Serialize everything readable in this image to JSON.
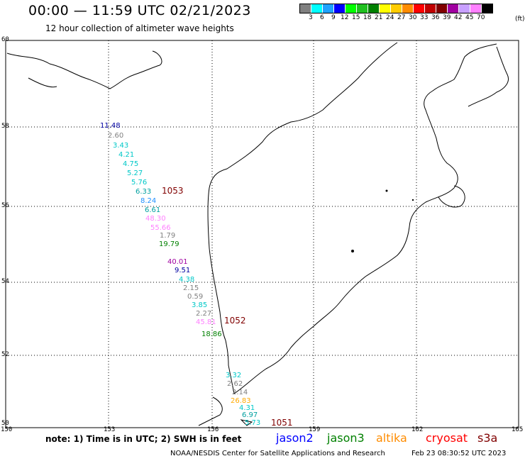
{
  "header": {
    "title": "00:00 — 11:59 UTC 02/21/2023",
    "subtitle": "12 hour collection of altimeter wave heights"
  },
  "legend": {
    "colors": [
      "#808080",
      "#00ffff",
      "#1fa2ff",
      "#0000ff",
      "#00ff00",
      "#20c020",
      "#008000",
      "#ffff00",
      "#ffcc00",
      "#ff8c00",
      "#ff0000",
      "#c00000",
      "#800000",
      "#a000a0",
      "#c8a0ff",
      "#ff80ff",
      "#000000"
    ],
    "ticks": [
      "3",
      "6",
      "9",
      "12",
      "15",
      "18",
      "21",
      "24",
      "27",
      "30",
      "33",
      "36",
      "39",
      "42",
      "45",
      "70"
    ],
    "unit": "(ft)"
  },
  "axes": {
    "lat_labels": [
      "60",
      "58",
      "56",
      "54",
      "52",
      "50"
    ],
    "lon_labels": [
      "150",
      "153",
      "156",
      "159",
      "162",
      "165"
    ]
  },
  "observations": [
    {
      "value": "11.48",
      "color": "#0000a0"
    },
    {
      "value": "2.60",
      "color": "#808080"
    },
    {
      "value": "3.43",
      "color": "#00c8c8"
    },
    {
      "value": "4.21",
      "color": "#00c8c8"
    },
    {
      "value": "4.75",
      "color": "#00c8c8"
    },
    {
      "value": "5.27",
      "color": "#00c8c8"
    },
    {
      "value": "5.76",
      "color": "#00c8c8"
    },
    {
      "value": "6.33",
      "color": "#00a0a0"
    },
    {
      "value": "8.24",
      "color": "#1f8fff"
    },
    {
      "value": "6.61",
      "color": "#00a0a0"
    },
    {
      "value": "48.30",
      "color": "#ff80ff"
    },
    {
      "value": "55.66",
      "color": "#ff80ff"
    },
    {
      "value": "1.79",
      "color": "#808080"
    },
    {
      "value": "19.79",
      "color": "#008000"
    },
    {
      "value": "40.01",
      "color": "#a000a0"
    },
    {
      "value": "9.51",
      "color": "#0000a0"
    },
    {
      "value": "4.38",
      "color": "#00c8c8"
    },
    {
      "value": "2.15",
      "color": "#808080"
    },
    {
      "value": "0.59",
      "color": "#808080"
    },
    {
      "value": "3.85",
      "color": "#00c8c8"
    },
    {
      "value": "2.27",
      "color": "#808080"
    },
    {
      "value": "45.81",
      "color": "#ff80ff"
    },
    {
      "value": "18.86",
      "color": "#008000"
    },
    {
      "value": "3.32",
      "color": "#00c8c8"
    },
    {
      "value": "2.62",
      "color": "#808080"
    },
    {
      "value": "2.14",
      "color": "#808080"
    },
    {
      "value": "26.83",
      "color": "#ffaa00"
    },
    {
      "value": "4.31",
      "color": "#00c8c8"
    },
    {
      "value": "6.97",
      "color": "#00a0a0"
    },
    {
      "value": "5.73",
      "color": "#00c8c8"
    }
  ],
  "times": [
    "1053",
    "1052",
    "1051"
  ],
  "note": "note: 1) Time is in UTC; 2) SWH is in feet",
  "satellites": [
    {
      "name": "jason2",
      "color": "#0000ff"
    },
    {
      "name": "jason3",
      "color": "#008000"
    },
    {
      "name": "altika",
      "color": "#ff8c00"
    },
    {
      "name": "cryosat",
      "color": "#ff0000"
    },
    {
      "name": "s3a",
      "color": "#800000"
    }
  ],
  "footer": {
    "center": "NOAA/NESDIS Center for Satellite Applications and Research",
    "timestamp": "Feb 23 08:30:52 UTC 2023"
  }
}
